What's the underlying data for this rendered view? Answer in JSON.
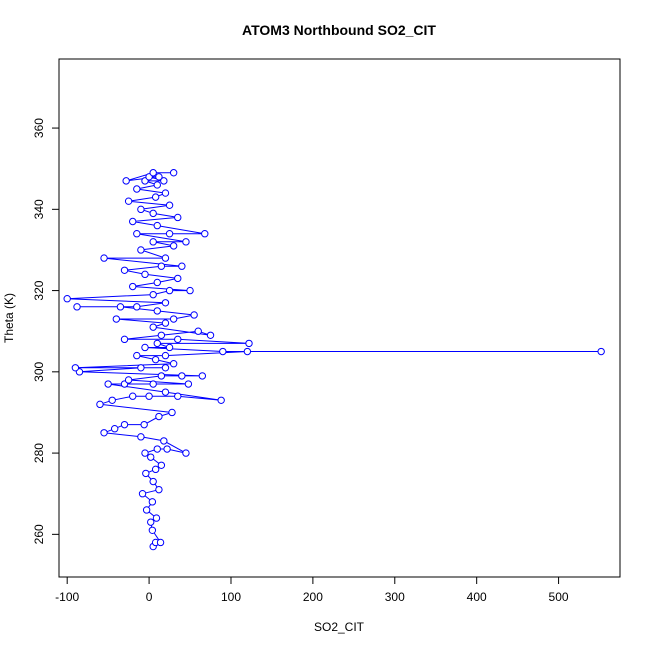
{
  "chart_data": {
    "type": "scatter",
    "title": "ATOM3 Northbound SO2_CIT",
    "xlabel": "SO2_CIT",
    "ylabel": "Theta (K)",
    "xlim": [
      -110,
      575
    ],
    "ylim": [
      249.5,
      377
    ],
    "xticks": [
      -100,
      0,
      100,
      200,
      300,
      400,
      500
    ],
    "yticks": [
      260,
      280,
      300,
      320,
      340,
      360
    ],
    "grid": false,
    "legend": "none",
    "colors": {
      "series": "#0000ff",
      "axis": "#000000",
      "background": "#ffffff"
    },
    "marker": "open-circle",
    "connected": true,
    "series": [
      {
        "points": [
          [
            5,
            257
          ],
          [
            8,
            258
          ],
          [
            14,
            258
          ],
          [
            4,
            261
          ],
          [
            2,
            263
          ],
          [
            9,
            264
          ],
          [
            -3,
            266
          ],
          [
            4,
            268
          ],
          [
            -8,
            270
          ],
          [
            12,
            271
          ],
          [
            5,
            273
          ],
          [
            -4,
            275
          ],
          [
            8,
            276
          ],
          [
            15,
            277
          ],
          [
            2,
            279
          ],
          [
            -5,
            280
          ],
          [
            10,
            281
          ],
          [
            22,
            281
          ],
          [
            45,
            280
          ],
          [
            18,
            283
          ],
          [
            -10,
            284
          ],
          [
            -55,
            285
          ],
          [
            -42,
            286
          ],
          [
            -30,
            287
          ],
          [
            -6,
            287
          ],
          [
            12,
            289
          ],
          [
            28,
            290
          ],
          [
            -60,
            292
          ],
          [
            -45,
            293
          ],
          [
            -20,
            294
          ],
          [
            0,
            294
          ],
          [
            35,
            294
          ],
          [
            88,
            293
          ],
          [
            20,
            295
          ],
          [
            -50,
            297
          ],
          [
            -30,
            297
          ],
          [
            5,
            297
          ],
          [
            48,
            297
          ],
          [
            -25,
            298
          ],
          [
            15,
            299
          ],
          [
            40,
            299
          ],
          [
            65,
            299
          ],
          [
            -85,
            300
          ],
          [
            -10,
            301
          ],
          [
            20,
            301
          ],
          [
            -90,
            301
          ],
          [
            30,
            302
          ],
          [
            8,
            303
          ],
          [
            -15,
            304
          ],
          [
            20,
            304
          ],
          [
            120,
            305
          ],
          [
            552,
            305
          ],
          [
            90,
            305
          ],
          [
            -5,
            306
          ],
          [
            25,
            306
          ],
          [
            10,
            307
          ],
          [
            122,
            307
          ],
          [
            35,
            308
          ],
          [
            -30,
            308
          ],
          [
            15,
            309
          ],
          [
            60,
            310
          ],
          [
            75,
            309
          ],
          [
            5,
            311
          ],
          [
            20,
            312
          ],
          [
            -40,
            313
          ],
          [
            30,
            313
          ],
          [
            55,
            314
          ],
          [
            10,
            315
          ],
          [
            -35,
            316
          ],
          [
            -88,
            316
          ],
          [
            -15,
            316
          ],
          [
            20,
            317
          ],
          [
            -100,
            318
          ],
          [
            5,
            319
          ],
          [
            25,
            320
          ],
          [
            50,
            320
          ],
          [
            -20,
            321
          ],
          [
            10,
            322
          ],
          [
            35,
            323
          ],
          [
            -5,
            324
          ],
          [
            -30,
            325
          ],
          [
            15,
            326
          ],
          [
            40,
            326
          ],
          [
            -55,
            328
          ],
          [
            20,
            328
          ],
          [
            -10,
            330
          ],
          [
            30,
            331
          ],
          [
            5,
            332
          ],
          [
            45,
            332
          ],
          [
            -15,
            334
          ],
          [
            25,
            334
          ],
          [
            68,
            334
          ],
          [
            10,
            336
          ],
          [
            -20,
            337
          ],
          [
            35,
            338
          ],
          [
            5,
            339
          ],
          [
            -10,
            340
          ],
          [
            25,
            341
          ],
          [
            -25,
            342
          ],
          [
            8,
            343
          ],
          [
            20,
            344
          ],
          [
            -15,
            345
          ],
          [
            10,
            346
          ],
          [
            -5,
            347
          ],
          [
            18,
            347
          ],
          [
            0,
            348
          ],
          [
            12,
            348
          ],
          [
            -28,
            347
          ],
          [
            5,
            349
          ],
          [
            30,
            349
          ]
        ]
      }
    ]
  }
}
